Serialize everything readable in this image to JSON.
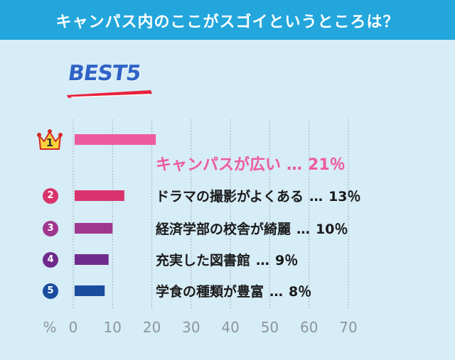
{
  "header": {
    "title": "キャンパス内のここがスゴイというところは？"
  },
  "badge": {
    "best_label": "BEST5"
  },
  "colors": {
    "header_bg": "#22a6dc",
    "background": "#d6ecf6",
    "grid": "#a7b2bb",
    "axis_text": "#8c969c",
    "crown": "#f7d23a",
    "accent_red": "#e8213a"
  },
  "chart_data": {
    "type": "bar",
    "orientation": "horizontal",
    "title": "キャンパス内のここがスゴイというところは？",
    "xlabel": "%",
    "xlim": [
      0,
      70
    ],
    "xticks": [
      "0",
      "10",
      "20",
      "30",
      "40",
      "50",
      "60",
      "70"
    ],
    "grid": true,
    "categories": [
      "キャンパスが広い",
      "ドラマの撮影がよくある",
      "経済学部の校舎が綺麗",
      "充実した図書館",
      "学食の種類が豊富"
    ],
    "values": [
      21,
      13,
      10,
      9,
      8
    ],
    "value_labels": [
      "21％",
      "13％",
      "10％",
      "9％",
      "8％"
    ],
    "separator": "…",
    "ranks": [
      "1",
      "2",
      "3",
      "4",
      "5"
    ],
    "bar_colors": [
      "#ee5a9f",
      "#d8336d",
      "#a0378e",
      "#6f2a8c",
      "#1a4d9e"
    ]
  }
}
